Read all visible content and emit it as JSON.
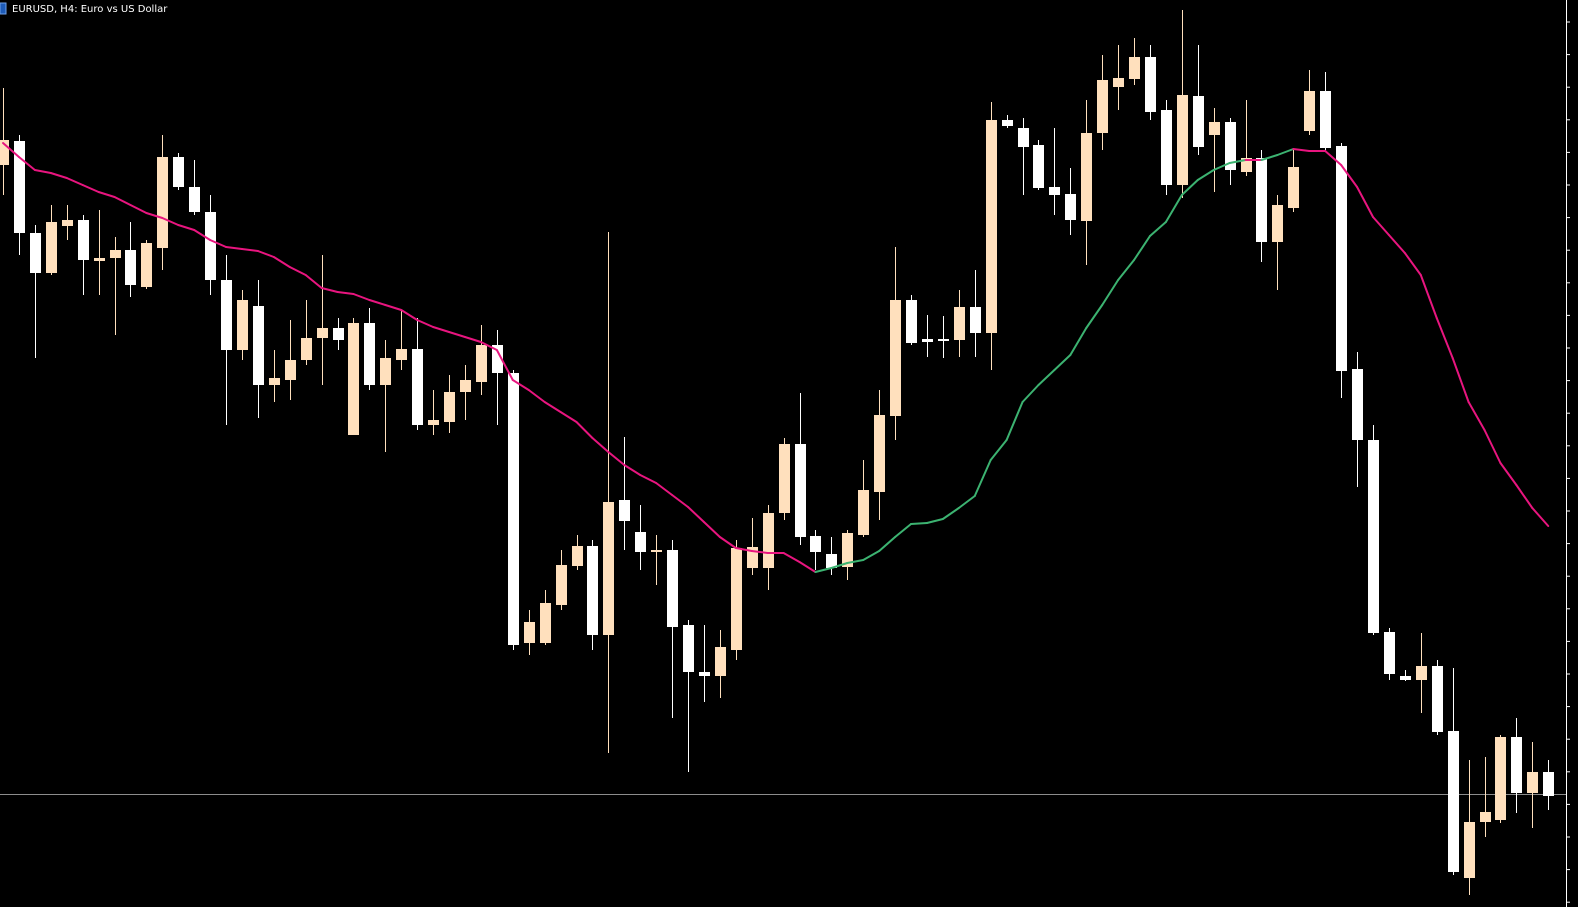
{
  "chart_data": {
    "type": "candlestick",
    "title": "EURUSD, H4:  Euro vs US Dollar",
    "ylim": [
      0,
      907
    ],
    "up_color": "#ffe0bd",
    "down_color": "#ffffff",
    "open": [
      742,
      766,
      674,
      634,
      681,
      687,
      646,
      649,
      657,
      620,
      659,
      750,
      720,
      695,
      627,
      557,
      601,
      522,
      527,
      547,
      569,
      579,
      472,
      584,
      522,
      547,
      558,
      482,
      485,
      515,
      525,
      562,
      534,
      264,
      264,
      302,
      341,
      361,
      272,
      407,
      375,
      355,
      357,
      282,
      235,
      231,
      257,
      339,
      339,
      394,
      463,
      371,
      353,
      340,
      372,
      415,
      491,
      607,
      568,
      568,
      567,
      600,
      574,
      787,
      779,
      762,
      720,
      713,
      686,
      774,
      820,
      828,
      850,
      797,
      722,
      811,
      772,
      785,
      735,
      749,
      665,
      699,
      776,
      816,
      761,
      538,
      467,
      275,
      231,
      227,
      241,
      176,
      29,
      85,
      87,
      170,
      114,
      135
    ],
    "high": [
      819,
      772,
      682,
      702,
      702,
      692,
      697,
      670,
      685,
      667,
      772,
      754,
      747,
      712,
      652,
      617,
      627,
      557,
      587,
      607,
      652,
      589,
      589,
      599,
      567,
      597,
      589,
      517,
      532,
      542,
      582,
      577,
      537,
      297,
      317,
      357,
      372,
      367,
      675,
      470,
      402,
      372,
      367,
      287,
      282,
      277,
      367,
      389,
      402,
      469,
      514,
      377,
      370,
      377,
      447,
      517,
      660,
      612,
      592,
      591,
      617,
      637,
      805,
      792,
      789,
      767,
      779,
      739,
      807,
      852,
      862,
      869,
      862,
      807,
      897,
      862,
      799,
      789,
      807,
      757,
      712,
      757,
      837,
      835,
      764,
      555,
      482,
      279,
      237,
      274,
      247,
      239,
      147,
      150,
      172,
      189,
      165,
      147
    ],
    "low": [
      712,
      652,
      549,
      632,
      667,
      612,
      612,
      572,
      610,
      618,
      637,
      717,
      692,
      612,
      482,
      547,
      489,
      505,
      507,
      542,
      522,
      557,
      472,
      517,
      455,
      537,
      477,
      472,
      474,
      487,
      512,
      482,
      257,
      252,
      262,
      297,
      337,
      257,
      154,
      357,
      337,
      322,
      189,
      135,
      205,
      209,
      247,
      332,
      317,
      387,
      362,
      337,
      332,
      327,
      370,
      387,
      467,
      562,
      550,
      549,
      550,
      550,
      537,
      779,
      712,
      717,
      692,
      672,
      642,
      757,
      797,
      822,
      787,
      712,
      709,
      752,
      715,
      722,
      731,
      645,
      617,
      695,
      772,
      757,
      509,
      420,
      272,
      227,
      226,
      194,
      172,
      32,
      12,
      70,
      84,
      94,
      79,
      97
    ],
    "close": [
      767,
      674,
      634,
      685,
      687,
      647,
      649,
      657,
      622,
      664,
      750,
      720,
      695,
      627,
      557,
      607,
      522,
      529,
      547,
      569,
      579,
      567,
      584,
      522,
      549,
      558,
      482,
      487,
      515,
      527,
      562,
      534,
      262,
      285,
      304,
      342,
      361,
      272,
      405,
      386,
      355,
      357,
      280,
      235,
      231,
      260,
      359,
      360,
      394,
      463,
      370,
      355,
      339,
      374,
      417,
      492,
      607,
      564,
      565,
      566,
      600,
      574,
      787,
      781,
      760,
      719,
      712,
      687,
      774,
      827,
      829,
      850,
      795,
      722,
      812,
      760,
      785,
      737,
      749,
      665,
      702,
      740,
      816,
      759,
      536,
      467,
      274,
      233,
      227,
      241,
      175,
      35,
      85,
      95,
      170,
      114,
      135,
      111
    ],
    "ma": {
      "up_color": "#3cb371",
      "down_color": "#e8157f",
      "values": [
        764,
        750,
        737,
        734,
        729,
        722,
        715,
        710,
        702,
        694,
        689,
        682,
        677,
        667,
        660,
        658,
        656,
        650,
        640,
        632,
        619,
        615,
        613,
        607,
        602,
        597,
        587,
        580,
        575,
        570,
        565,
        557,
        527,
        517,
        505,
        495,
        485,
        469,
        455,
        442,
        432,
        424,
        412,
        400,
        385,
        370,
        359,
        356,
        354,
        354,
        345,
        335,
        339,
        344,
        347,
        356,
        370,
        383,
        384,
        388,
        399,
        411,
        447,
        467,
        505,
        522,
        537,
        552,
        579,
        602,
        627,
        647,
        671,
        685,
        712,
        727,
        737,
        744,
        747,
        747,
        752,
        758,
        756,
        756,
        742,
        720,
        690,
        672,
        654,
        632,
        589,
        549,
        505,
        477,
        444,
        422,
        399,
        381
      ]
    },
    "price_line": {
      "value": 113,
      "color": "#8c8c8c"
    }
  }
}
